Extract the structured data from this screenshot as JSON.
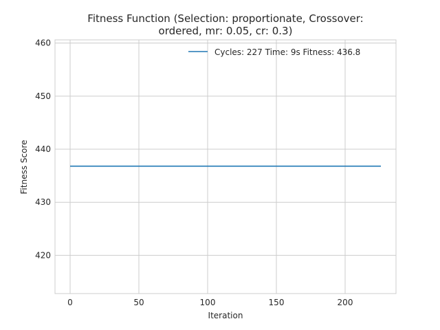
{
  "chart_data": {
    "type": "line",
    "title_line1": "Fitness Function (Selection: proportionate, Crossover:",
    "title_line2": "ordered, mr: 0.05, cr: 0.3)",
    "xlabel": "Iteration",
    "ylabel": "Fitness Score",
    "xlim": [
      -11,
      237
    ],
    "ylim": [
      412.8,
      460.6
    ],
    "xticks": [
      0,
      50,
      100,
      150,
      200
    ],
    "yticks": [
      420,
      430,
      440,
      450,
      460
    ],
    "grid": true,
    "legend_position": "top-right",
    "series": [
      {
        "name": "Cycles: 227 Time: 9s Fitness: 436.8",
        "color": "#1f77b4",
        "x": [
          0,
          226
        ],
        "y": [
          436.8,
          436.8
        ]
      }
    ]
  }
}
